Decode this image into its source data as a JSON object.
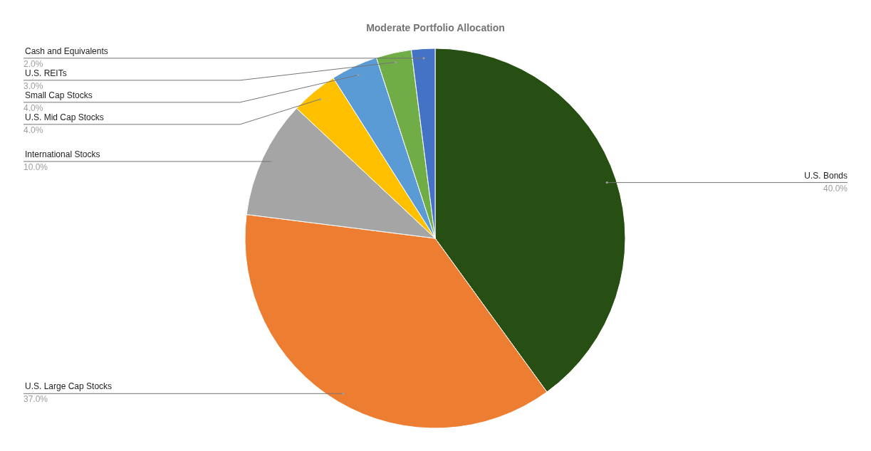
{
  "chart_data": {
    "type": "pie",
    "title": "Moderate Portfolio Allocation",
    "categories": [
      "U.S. Bonds",
      "U.S. Large Cap Stocks",
      "International Stocks",
      "U.S. Mid Cap Stocks",
      "Small Cap Stocks",
      "U.S. REITs",
      "Cash and Equivalents"
    ],
    "values": [
      40,
      37,
      10,
      4,
      4,
      3,
      2
    ],
    "colors": [
      "#274e13",
      "#ed7d31",
      "#a5a5a5",
      "#ffc000",
      "#5b9bd5",
      "#70ad47",
      "#4472c4"
    ],
    "value_labels": [
      "40.0%",
      "37.0%",
      "10.0%",
      "4.0%",
      "4.0%",
      "3.0%",
      "2.0%"
    ]
  }
}
